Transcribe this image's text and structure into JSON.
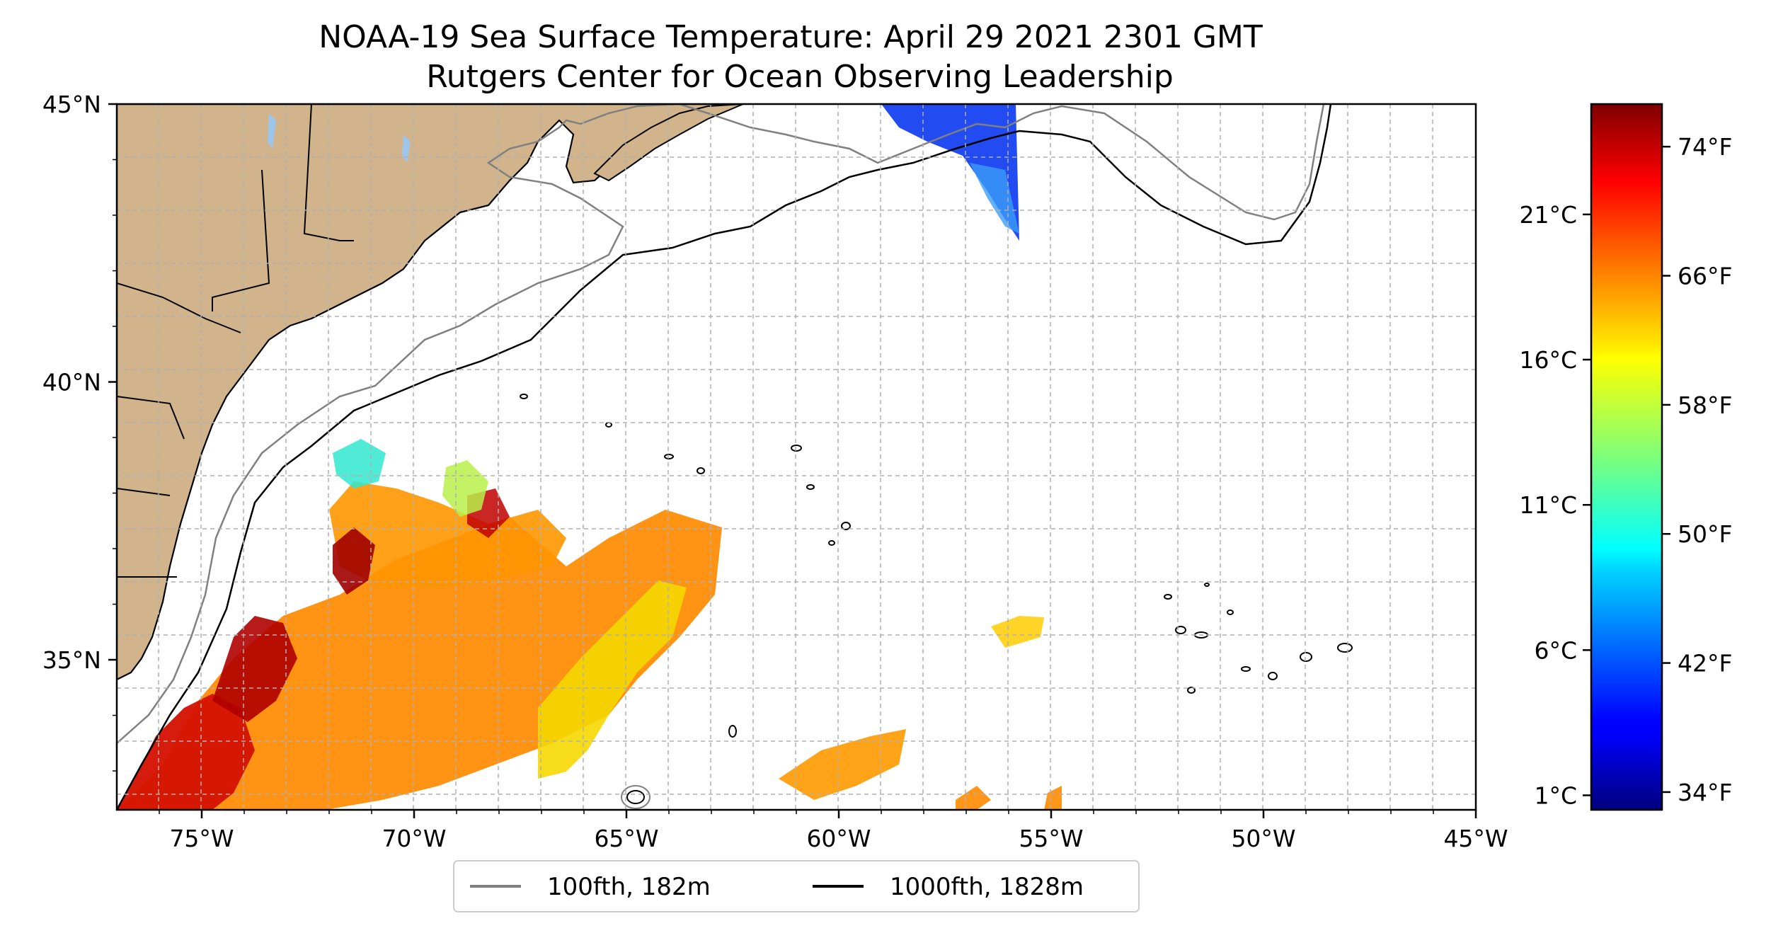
{
  "chart_data": {
    "type": "heatmap",
    "title": "NOAA-19 Sea Surface Temperature: April 29 2021 2301 GMT",
    "subtitle": "Rutgers Center for Ocean Observing Leadership",
    "x_ticks": [
      "75°W",
      "70°W",
      "65°W",
      "60°W",
      "55°W",
      "50°W",
      "45°W"
    ],
    "x_tick_values": [
      -75,
      -70,
      -65,
      -60,
      -55,
      -50,
      -45
    ],
    "y_ticks": [
      "45°N",
      "40°N",
      "35°N"
    ],
    "y_tick_values": [
      45,
      40,
      35
    ],
    "xlim": [
      -77,
      -45
    ],
    "ylim": [
      32.3,
      45
    ],
    "grid": true,
    "legend_position": "bottom",
    "legend": [
      {
        "label": "100fth, 182m",
        "color": "#808080"
      },
      {
        "label": "1000fth, 1828m",
        "color": "#000000"
      }
    ],
    "colorbar": {
      "colormap": "jet",
      "range_c": [
        0.5,
        24.8
      ],
      "celsius_ticks": [
        "1°C",
        "6°C",
        "11°C",
        "16°C",
        "21°C"
      ],
      "celsius_values": [
        1,
        6,
        11,
        16,
        21
      ],
      "fahrenheit_ticks": [
        "34°F",
        "42°F",
        "50°F",
        "58°F",
        "66°F",
        "74°F"
      ],
      "fahrenheit_values": [
        34,
        42,
        50,
        58,
        66,
        74
      ]
    },
    "land_color": "#d2b48c",
    "lake_color": "#9ec5ea"
  }
}
